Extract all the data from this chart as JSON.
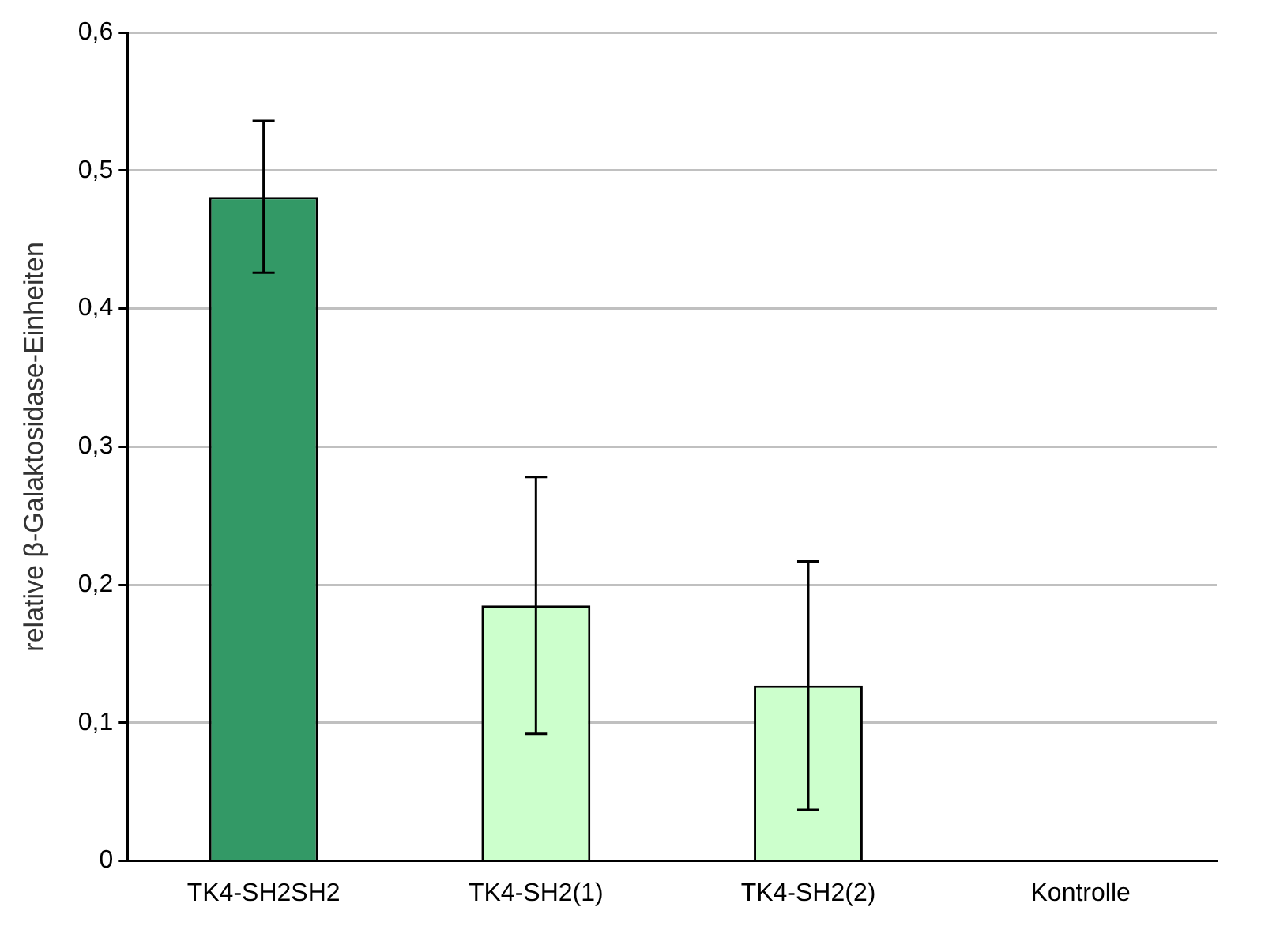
{
  "chart_data": {
    "type": "bar",
    "ylabel": "relative β-Galaktosidase-Einheiten",
    "categories": [
      "TK4-SH2SH2",
      "TK4-SH2(1)",
      "TK4-SH2(2)",
      "Kontrolle"
    ],
    "values": [
      0.481,
      0.185,
      0.127,
      0
    ],
    "colors": [
      "#339966",
      "#ccffcc",
      "#ccffcc",
      "#ccffcc"
    ],
    "errors": [
      0.055,
      0.093,
      0.09,
      null
    ],
    "ylim": [
      0,
      0.6
    ],
    "yticks": [
      {
        "value": 0,
        "label": "0"
      },
      {
        "value": 0.1,
        "label": "0,1"
      },
      {
        "value": 0.2,
        "label": "0,2"
      },
      {
        "value": 0.3,
        "label": "0,3"
      },
      {
        "value": 0.4,
        "label": "0,4"
      },
      {
        "value": 0.5,
        "label": "0,5"
      },
      {
        "value": 0.6,
        "label": "0,6"
      }
    ],
    "grid": "y",
    "legend": false
  }
}
